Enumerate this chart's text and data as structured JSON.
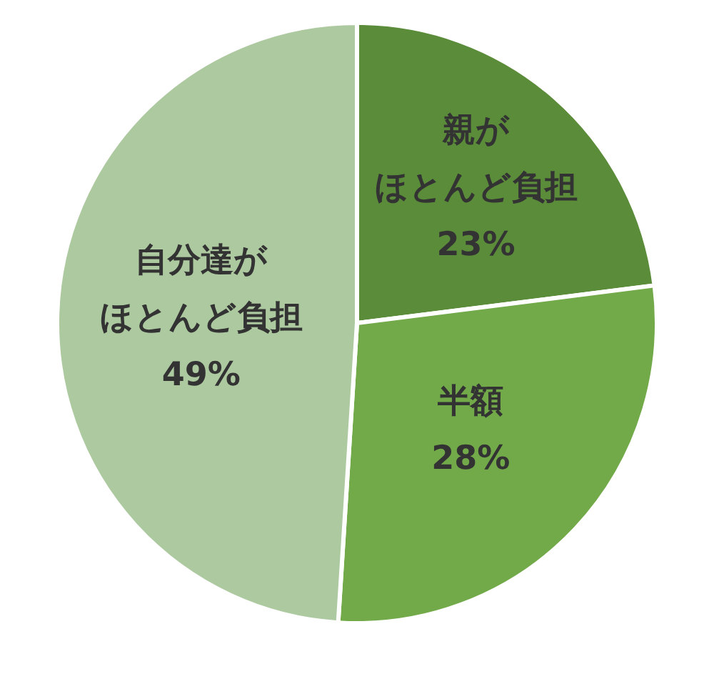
{
  "chart_data": {
    "type": "pie",
    "categories": [
      "親がほとんど負担",
      "半額",
      "自分達がほとんど負担"
    ],
    "values": [
      23,
      28,
      49
    ],
    "value_labels": [
      "23%",
      "28%",
      "49%"
    ],
    "colors": [
      "#5b8c3a",
      "#72aa4a",
      "#adc9a0"
    ]
  }
}
